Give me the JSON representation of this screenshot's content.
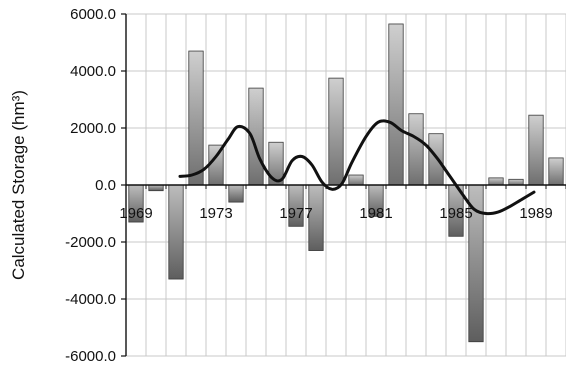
{
  "chart_data": {
    "type": "bar",
    "ylabel": "Calculated Storage (hm³)",
    "ylim": [
      -6000,
      6000
    ],
    "y_ticks": [
      "6000.0",
      "4000.0",
      "2000.0",
      "0.0",
      "-2000.0",
      "-4000.0",
      "-6000.0"
    ],
    "x_tick_labels": [
      "1969",
      "1973",
      "1977",
      "1981",
      "1985",
      "1989"
    ],
    "grid": true,
    "categories": [
      "1969",
      "1970",
      "1971",
      "1972",
      "1973",
      "1974",
      "1975",
      "1976",
      "1977",
      "1978",
      "1979",
      "1980",
      "1981",
      "1982",
      "1983",
      "1984",
      "1985",
      "1986",
      "1987",
      "1988",
      "1989",
      "1990"
    ],
    "series": [
      {
        "type": "bar",
        "values": [
          -1300,
          -200,
          -3300,
          4700,
          1400,
          -600,
          3400,
          1500,
          -1450,
          -2300,
          3750,
          350,
          -1100,
          5650,
          2500,
          1800,
          -1800,
          -5500,
          250,
          200,
          2450,
          950
        ]
      },
      {
        "type": "line",
        "x": [
          1971.2,
          1971.8,
          1972.4,
          1973.0,
          1973.6,
          1974.1,
          1974.7,
          1975.2,
          1975.8,
          1976.3,
          1976.8,
          1977.3,
          1977.8,
          1978.3,
          1978.8,
          1979.3,
          1979.8,
          1980.5,
          1981.1,
          1981.7,
          1982.3,
          1982.9,
          1983.5,
          1984.1,
          1984.7,
          1985.3,
          1985.9,
          1986.5,
          1987.1,
          1987.7,
          1988.3,
          1988.9
        ],
        "y": [
          300,
          350,
          550,
          1000,
          1600,
          2050,
          1800,
          900,
          250,
          200,
          850,
          1000,
          700,
          100,
          -150,
          50,
          800,
          1700,
          2200,
          2200,
          1900,
          1700,
          1400,
          900,
          300,
          -300,
          -850,
          -1000,
          -950,
          -750,
          -500,
          -250
        ]
      }
    ]
  }
}
